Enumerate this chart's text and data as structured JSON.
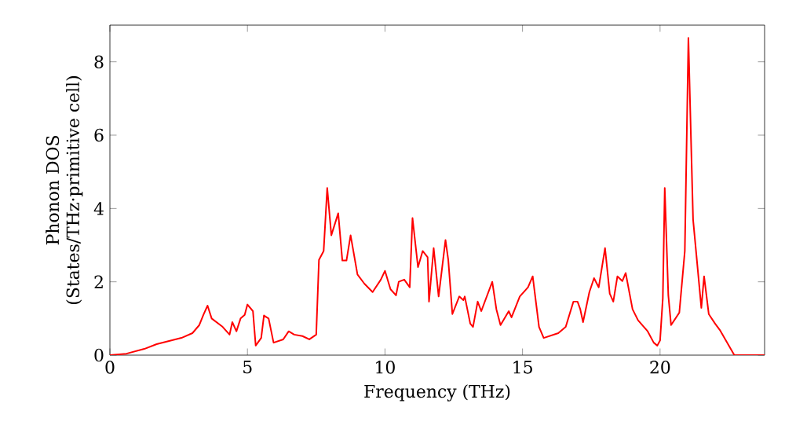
{
  "chart_data": {
    "type": "line",
    "xlabel": "Frequency (THz)",
    "ylabel": "Phonon DOS\n(States/THz·primitive cell)",
    "xlim": [
      0,
      23.8
    ],
    "ylim": [
      0,
      9
    ],
    "xticks": [
      0,
      5,
      10,
      15,
      20
    ],
    "yticks": [
      0,
      2,
      4,
      6,
      8
    ],
    "marker": "none",
    "line_style": "solid",
    "series": [
      {
        "color": "#ff0000",
        "x": [
          0,
          0.6,
          1.25,
          1.7,
          2.6,
          3.0,
          3.25,
          3.4,
          3.55,
          3.7,
          4.1,
          4.35,
          4.45,
          4.6,
          4.75,
          4.9,
          5.0,
          5.2,
          5.3,
          5.5,
          5.6,
          5.77,
          5.95,
          6.3,
          6.5,
          6.7,
          7.0,
          7.25,
          7.5,
          7.6,
          7.77,
          7.9,
          8.05,
          8.3,
          8.45,
          8.6,
          8.75,
          9.0,
          9.25,
          9.55,
          9.85,
          10.0,
          10.2,
          10.4,
          10.5,
          10.7,
          10.9,
          11.0,
          11.2,
          11.37,
          11.55,
          11.6,
          11.77,
          11.95,
          12.2,
          12.3,
          12.45,
          12.7,
          12.85,
          12.9,
          13.1,
          13.2,
          13.37,
          13.5,
          13.9,
          14.05,
          14.2,
          14.5,
          14.6,
          14.9,
          15.2,
          15.37,
          15.6,
          15.77,
          16.3,
          16.57,
          16.85,
          17.0,
          17.1,
          17.2,
          17.43,
          17.6,
          17.77,
          18.0,
          18.17,
          18.3,
          18.45,
          18.63,
          18.75,
          19.0,
          19.2,
          19.55,
          19.77,
          19.9,
          20.0,
          20.1,
          20.17,
          20.3,
          20.4,
          20.7,
          20.9,
          21.03,
          21.2,
          21.5,
          21.6,
          21.77,
          22.0,
          22.17,
          22.4,
          22.7,
          23.8
        ],
        "values": [
          0,
          0.04,
          0.17,
          0.3,
          0.47,
          0.6,
          0.82,
          1.1,
          1.35,
          1.0,
          0.77,
          0.56,
          0.9,
          0.65,
          1.0,
          1.1,
          1.38,
          1.2,
          0.26,
          0.47,
          1.08,
          1.0,
          0.34,
          0.43,
          0.65,
          0.56,
          0.52,
          0.43,
          0.56,
          2.6,
          2.84,
          4.56,
          3.27,
          3.87,
          2.58,
          2.58,
          3.27,
          2.2,
          1.95,
          1.72,
          2.06,
          2.3,
          1.8,
          1.63,
          2.0,
          2.06,
          1.85,
          3.74,
          2.4,
          2.84,
          2.67,
          1.46,
          2.92,
          1.6,
          3.14,
          2.6,
          1.12,
          1.6,
          1.5,
          1.6,
          0.86,
          0.77,
          1.46,
          1.2,
          2.0,
          1.25,
          0.82,
          1.2,
          1.03,
          1.6,
          1.85,
          2.15,
          0.77,
          0.47,
          0.6,
          0.77,
          1.46,
          1.46,
          1.25,
          0.9,
          1.72,
          2.1,
          1.85,
          2.92,
          1.68,
          1.46,
          2.15,
          2.02,
          2.24,
          1.25,
          0.95,
          0.65,
          0.34,
          0.26,
          0.4,
          1.55,
          4.56,
          1.63,
          0.82,
          1.16,
          2.84,
          8.65,
          3.7,
          1.29,
          2.15,
          1.12,
          0.86,
          0.69,
          0.39,
          0,
          0
        ]
      }
    ]
  }
}
